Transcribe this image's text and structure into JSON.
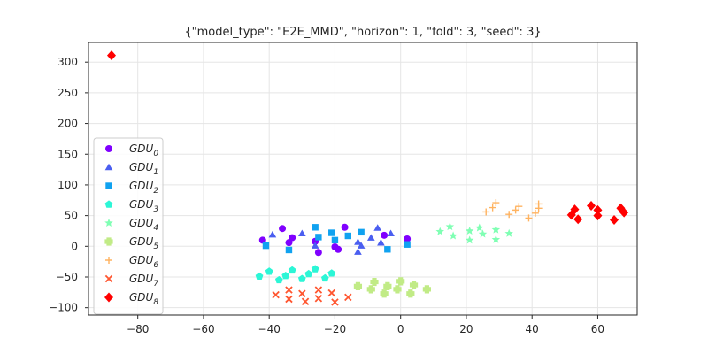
{
  "chart_data": {
    "type": "scatter",
    "title": "{\"model_type\": \"E2E_MMD\", \"horizon\": 1, \"fold\": 3, \"seed\": 3}",
    "xlabel": "",
    "ylabel": "",
    "xlim": [
      -95,
      72
    ],
    "ylim": [
      -112,
      332
    ],
    "xticks": [
      -80,
      -60,
      -40,
      -20,
      0,
      20,
      40,
      60
    ],
    "yticks": [
      -100,
      -50,
      0,
      50,
      100,
      150,
      200,
      250,
      300
    ],
    "xtick_labels": [
      "−80",
      "−60",
      "−40",
      "−20",
      "0",
      "20",
      "40",
      "60"
    ],
    "ytick_labels": [
      "−100",
      "−50",
      "0",
      "50",
      "100",
      "150",
      "200",
      "250",
      "300"
    ],
    "grid": true,
    "legend_position": "center-left",
    "series": [
      {
        "name": "GDU",
        "sub": "0",
        "color": "#8000ff",
        "marker": "circle",
        "points": [
          [
            -42,
            10
          ],
          [
            -36,
            29
          ],
          [
            -34,
            6
          ],
          [
            -33,
            14
          ],
          [
            -26,
            8
          ],
          [
            -25,
            -10
          ],
          [
            -19,
            -5
          ],
          [
            -17,
            31
          ],
          [
            -20,
            -1
          ],
          [
            -5,
            18
          ],
          [
            2,
            12
          ]
        ]
      },
      {
        "name": "GDU",
        "sub": "1",
        "color": "#4a5ef0",
        "marker": "triangle",
        "points": [
          [
            -39,
            19
          ],
          [
            -30,
            21
          ],
          [
            -26,
            1
          ],
          [
            -13,
            7
          ],
          [
            -13,
            -9
          ],
          [
            -12,
            1
          ],
          [
            -9,
            14
          ],
          [
            -7,
            30
          ],
          [
            -6,
            6
          ],
          [
            -3,
            21
          ]
        ]
      },
      {
        "name": "GDU",
        "sub": "2",
        "color": "#10a2f0",
        "marker": "square",
        "points": [
          [
            -41,
            1
          ],
          [
            -34,
            -6
          ],
          [
            -26,
            31
          ],
          [
            -25,
            15
          ],
          [
            -21,
            22
          ],
          [
            -20,
            10
          ],
          [
            -16,
            17
          ],
          [
            -12,
            23
          ],
          [
            -4,
            -5
          ],
          [
            2,
            3
          ]
        ]
      },
      {
        "name": "GDU",
        "sub": "3",
        "color": "#2cf6d6",
        "marker": "pentagon",
        "points": [
          [
            -43,
            -49
          ],
          [
            -40,
            -41
          ],
          [
            -37,
            -55
          ],
          [
            -35,
            -48
          ],
          [
            -33,
            -39
          ],
          [
            -30,
            -53
          ],
          [
            -28,
            -45
          ],
          [
            -26,
            -37
          ],
          [
            -23,
            -52
          ],
          [
            -21,
            -44
          ]
        ]
      },
      {
        "name": "GDU",
        "sub": "4",
        "color": "#80ffb4",
        "marker": "star",
        "points": [
          [
            12,
            24
          ],
          [
            15,
            32
          ],
          [
            16,
            17
          ],
          [
            21,
            25
          ],
          [
            21,
            10
          ],
          [
            24,
            30
          ],
          [
            25,
            20
          ],
          [
            29,
            27
          ],
          [
            29,
            11
          ],
          [
            33,
            21
          ]
        ]
      },
      {
        "name": "GDU",
        "sub": "5",
        "color": "#c1eb86",
        "marker": "plus",
        "points": [
          [
            -13,
            -65
          ],
          [
            -9,
            -70
          ],
          [
            -8,
            -58
          ],
          [
            -5,
            -77
          ],
          [
            -4,
            -65
          ],
          [
            -1,
            -70
          ],
          [
            0,
            -57
          ],
          [
            3,
            -77
          ],
          [
            4,
            -63
          ],
          [
            8,
            -70
          ]
        ]
      },
      {
        "name": "GDU",
        "sub": "6",
        "color": "#ffb360",
        "marker": "plus-thin",
        "points": [
          [
            26,
            56
          ],
          [
            28,
            63
          ],
          [
            29,
            71
          ],
          [
            33,
            52
          ],
          [
            35,
            59
          ],
          [
            36,
            65
          ],
          [
            39,
            46
          ],
          [
            41,
            54
          ],
          [
            42,
            69
          ],
          [
            42,
            62
          ]
        ]
      },
      {
        "name": "GDU",
        "sub": "7",
        "color": "#ff5630",
        "marker": "x",
        "points": [
          [
            -38,
            -79
          ],
          [
            -34,
            -71
          ],
          [
            -34,
            -86
          ],
          [
            -30,
            -77
          ],
          [
            -29,
            -90
          ],
          [
            -25,
            -71
          ],
          [
            -25,
            -85
          ],
          [
            -21,
            -76
          ],
          [
            -20,
            -91
          ],
          [
            -16,
            -83
          ]
        ]
      },
      {
        "name": "GDU",
        "sub": "8",
        "color": "#ff0000",
        "marker": "diamond",
        "points": [
          [
            -88,
            311
          ],
          [
            52,
            51
          ],
          [
            53,
            60
          ],
          [
            54,
            44
          ],
          [
            58,
            66
          ],
          [
            60,
            59
          ],
          [
            60,
            50
          ],
          [
            65,
            43
          ],
          [
            67,
            62
          ],
          [
            68,
            55
          ]
        ]
      }
    ]
  }
}
